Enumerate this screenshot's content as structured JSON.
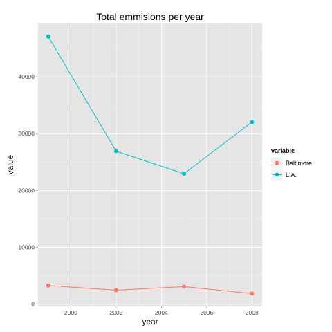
{
  "chart_data": {
    "type": "line",
    "title": "Total emmisions per year",
    "xlabel": "year",
    "ylabel": "value",
    "x": [
      1999,
      2002,
      2005,
      2008
    ],
    "xlim": [
      1998.55,
      2008.45
    ],
    "ylim": [
      -400,
      49500
    ],
    "x_ticks": [
      2000,
      2002,
      2004,
      2006,
      2008
    ],
    "y_ticks": [
      0,
      10000,
      20000,
      30000,
      40000
    ],
    "grid": true,
    "legend": {
      "title": "variable",
      "position": "right"
    },
    "series": [
      {
        "name": "Baltimore",
        "color": "#F8766D",
        "values": [
          3274,
          2454,
          3091,
          1862
        ]
      },
      {
        "name": "L.A.",
        "color": "#00BFC4",
        "values": [
          47103,
          26916,
          22955,
          32038
        ]
      }
    ]
  }
}
